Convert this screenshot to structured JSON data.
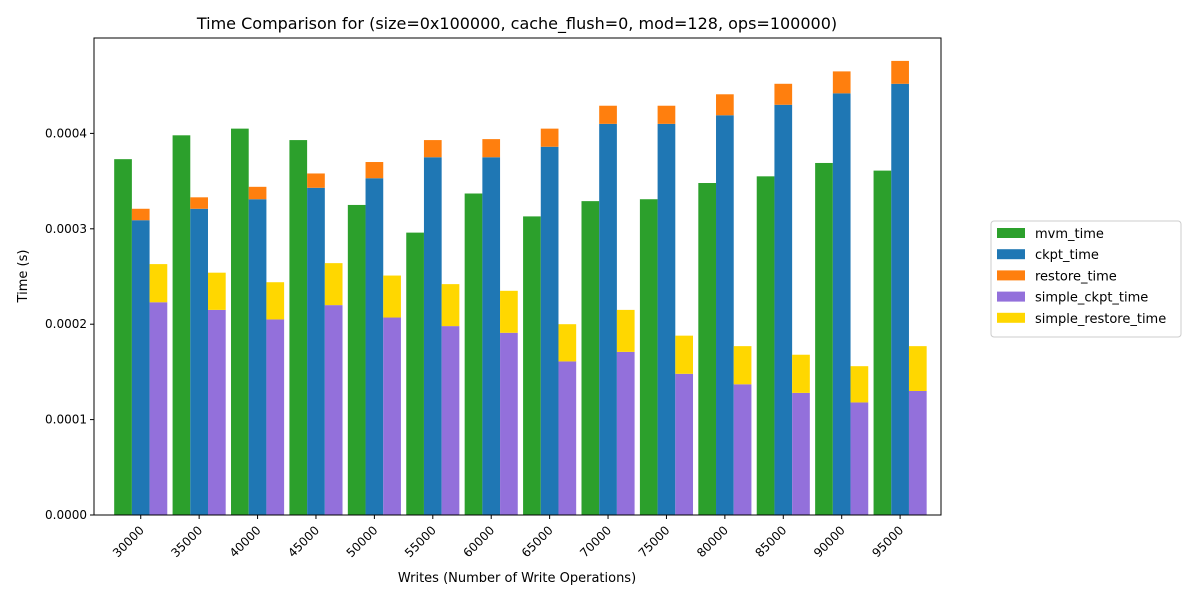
{
  "chart_data": {
    "type": "bar",
    "title": "Time Comparison for (size=0x100000, cache_flush=0, mod=128, ops=100000)",
    "xlabel": "Writes (Number of Write Operations)",
    "ylabel": "Time (s)",
    "categories": [
      "30000",
      "35000",
      "40000",
      "45000",
      "50000",
      "55000",
      "60000",
      "65000",
      "70000",
      "75000",
      "80000",
      "85000",
      "90000",
      "95000"
    ],
    "ylim": [
      0,
      0.0005
    ],
    "yticks": [
      0.0,
      0.0001,
      0.0002,
      0.0003,
      0.0004
    ],
    "ytick_labels": [
      "0.0000",
      "0.0001",
      "0.0002",
      "0.0003",
      "0.0004"
    ],
    "legend_position": "right",
    "grid": false,
    "series": [
      {
        "name": "mvm_time",
        "color": "#2ca02c",
        "stack": "mvm",
        "values": [
          0.000373,
          0.000398,
          0.000405,
          0.000393,
          0.000325,
          0.000296,
          0.000337,
          0.000313,
          0.000329,
          0.000331,
          0.000348,
          0.000355,
          0.000369,
          0.000361
        ]
      },
      {
        "name": "ckpt_time",
        "color": "#1f77b4",
        "stack": "ckpt",
        "values": [
          0.000309,
          0.000321,
          0.000331,
          0.000343,
          0.000353,
          0.000375,
          0.000375,
          0.000386,
          0.00041,
          0.00041,
          0.000419,
          0.00043,
          0.000442,
          0.000452
        ]
      },
      {
        "name": "restore_time",
        "color": "#ff7f0e",
        "stack": "ckpt",
        "values": [
          1.2e-05,
          1.2e-05,
          1.3e-05,
          1.5e-05,
          1.7e-05,
          1.8e-05,
          1.9e-05,
          1.9e-05,
          1.9e-05,
          1.9e-05,
          2.2e-05,
          2.2e-05,
          2.3e-05,
          2.4e-05
        ]
      },
      {
        "name": "simple_ckpt_time",
        "color": "#9370db",
        "stack": "simple",
        "values": [
          0.000223,
          0.000215,
          0.000205,
          0.00022,
          0.000207,
          0.000198,
          0.000191,
          0.000161,
          0.000171,
          0.000148,
          0.000137,
          0.000128,
          0.000118,
          0.00013
        ]
      },
      {
        "name": "simple_restore_time",
        "color": "#ffd700",
        "stack": "simple",
        "values": [
          4e-05,
          3.9e-05,
          3.9e-05,
          4.4e-05,
          4.4e-05,
          4.4e-05,
          4.4e-05,
          3.9e-05,
          4.4e-05,
          4e-05,
          4e-05,
          4e-05,
          3.8e-05,
          4.7e-05
        ]
      }
    ]
  }
}
